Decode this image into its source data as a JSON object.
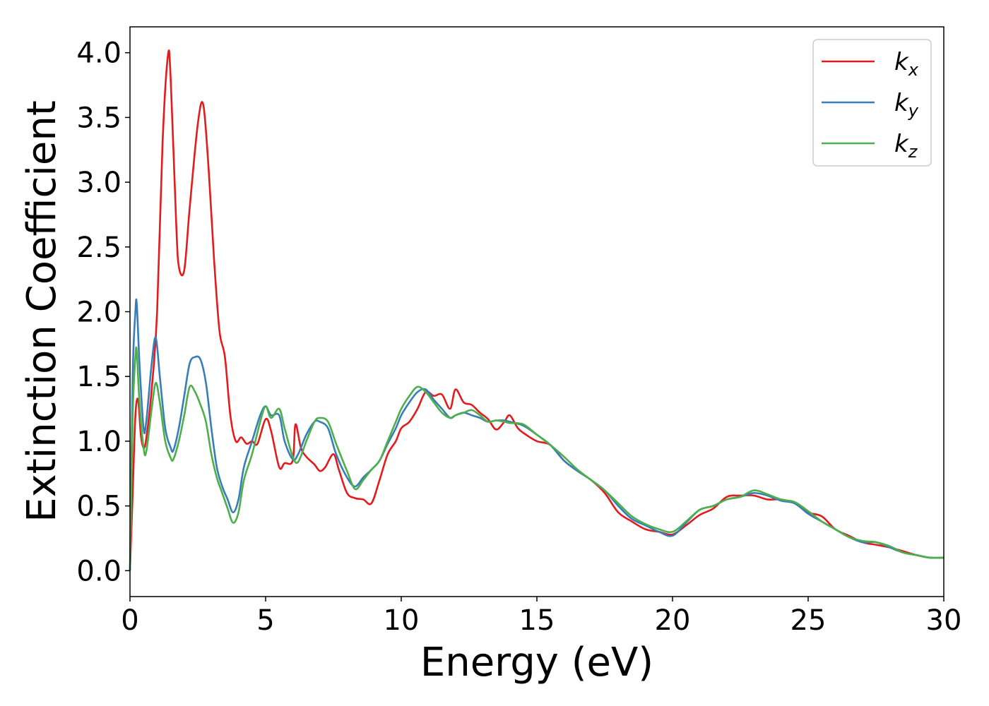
{
  "chart_data": {
    "type": "line",
    "xlabel": "Energy (eV)",
    "ylabel": "Extinction Coefficient",
    "xlim": [
      0,
      30
    ],
    "ylim": [
      -0.2,
      4.2
    ],
    "xticks": [
      0,
      5,
      10,
      15,
      20,
      25,
      30
    ],
    "xtick_labels": [
      "0",
      "5",
      "10",
      "15",
      "20",
      "25",
      "30"
    ],
    "yticks": [
      0.0,
      0.5,
      1.0,
      1.5,
      2.0,
      2.5,
      3.0,
      3.5,
      4.0
    ],
    "ytick_labels": [
      "0.0",
      "0.5",
      "1.0",
      "1.5",
      "2.0",
      "2.5",
      "3.0",
      "3.5",
      "4.0"
    ],
    "grid": false,
    "legend_position": "top-right",
    "series": [
      {
        "name": "k_x",
        "legend_main": "k",
        "legend_sub": "x",
        "color": "#e41a1c",
        "x": [
          0,
          0.1,
          0.2,
          0.3,
          0.4,
          0.5,
          0.6,
          0.8,
          1.0,
          1.2,
          1.4,
          1.5,
          1.7,
          1.8,
          2.0,
          2.2,
          2.5,
          2.7,
          2.9,
          3.1,
          3.3,
          3.5,
          3.7,
          3.9,
          4.1,
          4.3,
          4.5,
          4.7,
          5.0,
          5.2,
          5.5,
          5.7,
          6.0,
          6.1,
          6.3,
          6.5,
          6.8,
          7.0,
          7.2,
          7.5,
          7.7,
          8.0,
          8.3,
          8.6,
          8.9,
          9.2,
          9.5,
          9.8,
          10.0,
          10.3,
          10.6,
          10.9,
          11.2,
          11.5,
          11.8,
          12.0,
          12.3,
          12.6,
          12.9,
          13.2,
          13.5,
          13.8,
          14.0,
          14.3,
          14.6,
          15.0,
          15.5,
          16.0,
          16.5,
          17.0,
          17.5,
          18.0,
          18.5,
          19.0,
          19.5,
          20.0,
          20.5,
          21.0,
          21.5,
          22.0,
          22.5,
          23.0,
          23.5,
          24.0,
          24.5,
          25.0,
          25.5,
          26.0,
          26.5,
          27.0,
          27.5,
          28.0,
          28.5,
          29.0,
          29.5,
          30.0
        ],
        "y": [
          0.0,
          0.6,
          1.2,
          1.32,
          1.05,
          0.95,
          1.02,
          1.4,
          2.0,
          3.3,
          3.98,
          3.8,
          2.7,
          2.35,
          2.32,
          2.8,
          3.45,
          3.6,
          3.1,
          2.4,
          1.85,
          1.65,
          1.2,
          1.0,
          1.03,
          0.98,
          1.0,
          0.98,
          1.17,
          1.08,
          0.8,
          0.83,
          0.85,
          1.13,
          0.95,
          0.88,
          0.82,
          0.77,
          0.8,
          0.9,
          0.78,
          0.6,
          0.56,
          0.55,
          0.52,
          0.7,
          0.9,
          1.0,
          1.1,
          1.15,
          1.25,
          1.38,
          1.35,
          1.36,
          1.25,
          1.4,
          1.3,
          1.28,
          1.22,
          1.17,
          1.09,
          1.15,
          1.2,
          1.1,
          1.05,
          1.0,
          0.97,
          0.85,
          0.77,
          0.7,
          0.6,
          0.45,
          0.38,
          0.32,
          0.3,
          0.28,
          0.35,
          0.43,
          0.48,
          0.57,
          0.58,
          0.58,
          0.55,
          0.55,
          0.52,
          0.45,
          0.42,
          0.32,
          0.27,
          0.22,
          0.2,
          0.18,
          0.15,
          0.12,
          0.1,
          0.1
        ]
      },
      {
        "name": "k_y",
        "legend_main": "k",
        "legend_sub": "y",
        "color": "#377eb8",
        "x": [
          0,
          0.1,
          0.2,
          0.25,
          0.35,
          0.5,
          0.6,
          0.8,
          0.95,
          1.1,
          1.3,
          1.5,
          1.6,
          1.8,
          2.0,
          2.2,
          2.4,
          2.6,
          2.8,
          3.0,
          3.2,
          3.4,
          3.6,
          3.8,
          4.0,
          4.2,
          4.5,
          4.8,
          5.0,
          5.2,
          5.5,
          5.7,
          6.0,
          6.2,
          6.5,
          6.8,
          7.0,
          7.3,
          7.6,
          8.0,
          8.3,
          8.6,
          8.9,
          9.2,
          9.5,
          9.8,
          10.0,
          10.3,
          10.6,
          10.9,
          11.2,
          11.5,
          11.8,
          12.0,
          12.3,
          12.6,
          12.9,
          13.2,
          13.5,
          13.8,
          14.0,
          14.5,
          15.0,
          15.5,
          16.0,
          16.5,
          17.0,
          17.5,
          18.0,
          18.5,
          19.0,
          19.5,
          20.0,
          20.5,
          21.0,
          21.5,
          22.0,
          22.5,
          23.0,
          23.5,
          24.0,
          24.5,
          25.0,
          25.5,
          26.0,
          26.5,
          27.0,
          27.5,
          28.0,
          28.5,
          29.0,
          29.5,
          30.0
        ],
        "y": [
          0.0,
          1.5,
          2.0,
          2.06,
          1.6,
          1.1,
          1.15,
          1.6,
          1.8,
          1.5,
          1.1,
          0.95,
          0.93,
          1.1,
          1.35,
          1.6,
          1.65,
          1.63,
          1.45,
          1.1,
          0.8,
          0.65,
          0.55,
          0.45,
          0.55,
          0.8,
          1.0,
          1.2,
          1.27,
          1.2,
          1.2,
          1.0,
          0.86,
          0.9,
          1.05,
          1.15,
          1.15,
          1.1,
          0.9,
          0.72,
          0.65,
          0.72,
          0.78,
          0.85,
          0.98,
          1.1,
          1.2,
          1.3,
          1.38,
          1.4,
          1.32,
          1.25,
          1.18,
          1.2,
          1.22,
          1.2,
          1.18,
          1.15,
          1.16,
          1.16,
          1.15,
          1.12,
          1.05,
          0.97,
          0.85,
          0.77,
          0.7,
          0.62,
          0.5,
          0.4,
          0.35,
          0.3,
          0.27,
          0.37,
          0.47,
          0.5,
          0.55,
          0.57,
          0.6,
          0.58,
          0.54,
          0.52,
          0.44,
          0.38,
          0.32,
          0.26,
          0.22,
          0.22,
          0.18,
          0.14,
          0.12,
          0.1,
          0.1
        ]
      },
      {
        "name": "k_z",
        "legend_main": "k",
        "legend_sub": "z",
        "color": "#4daf4a",
        "x": [
          0,
          0.1,
          0.2,
          0.25,
          0.35,
          0.5,
          0.6,
          0.8,
          0.95,
          1.1,
          1.3,
          1.5,
          1.6,
          1.8,
          2.0,
          2.2,
          2.4,
          2.6,
          2.8,
          3.0,
          3.2,
          3.4,
          3.6,
          3.8,
          4.0,
          4.2,
          4.5,
          4.8,
          5.0,
          5.2,
          5.5,
          5.7,
          6.0,
          6.2,
          6.5,
          6.8,
          7.0,
          7.3,
          7.6,
          8.0,
          8.3,
          8.6,
          8.9,
          9.2,
          9.5,
          9.8,
          10.0,
          10.3,
          10.6,
          10.9,
          11.2,
          11.5,
          11.8,
          12.0,
          12.3,
          12.6,
          12.9,
          13.2,
          13.5,
          13.8,
          14.0,
          14.5,
          15.0,
          15.5,
          16.0,
          16.5,
          17.0,
          17.5,
          18.0,
          18.5,
          19.0,
          19.5,
          20.0,
          20.5,
          21.0,
          21.5,
          22.0,
          22.5,
          23.0,
          23.5,
          24.0,
          24.5,
          25.0,
          25.5,
          26.0,
          26.5,
          27.0,
          27.5,
          28.0,
          28.5,
          29.0,
          29.5,
          30.0
        ],
        "y": [
          0.0,
          1.2,
          1.65,
          1.69,
          1.3,
          0.95,
          0.92,
          1.25,
          1.45,
          1.3,
          1.0,
          0.87,
          0.86,
          1.0,
          1.2,
          1.42,
          1.38,
          1.28,
          1.15,
          0.9,
          0.72,
          0.6,
          0.48,
          0.37,
          0.45,
          0.7,
          0.9,
          1.15,
          1.27,
          1.18,
          1.25,
          1.1,
          0.88,
          0.84,
          1.0,
          1.15,
          1.18,
          1.15,
          0.98,
          0.77,
          0.63,
          0.7,
          0.78,
          0.85,
          1.0,
          1.15,
          1.25,
          1.35,
          1.42,
          1.38,
          1.3,
          1.22,
          1.18,
          1.2,
          1.22,
          1.24,
          1.2,
          1.15,
          1.16,
          1.15,
          1.14,
          1.13,
          1.05,
          0.97,
          0.88,
          0.78,
          0.7,
          0.62,
          0.52,
          0.42,
          0.36,
          0.32,
          0.3,
          0.38,
          0.47,
          0.5,
          0.55,
          0.57,
          0.62,
          0.59,
          0.55,
          0.53,
          0.46,
          0.38,
          0.32,
          0.26,
          0.23,
          0.22,
          0.19,
          0.14,
          0.12,
          0.1,
          0.1
        ]
      }
    ]
  }
}
